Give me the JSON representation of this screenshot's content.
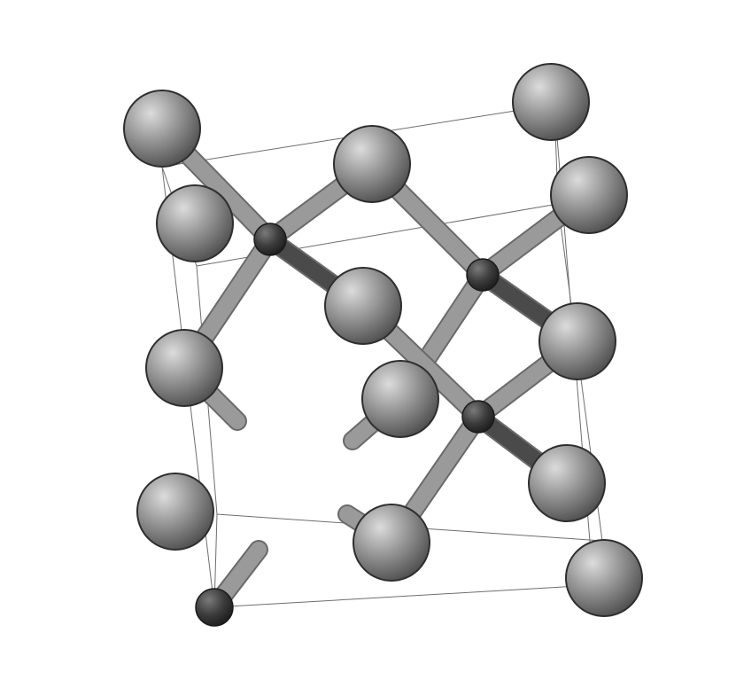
{
  "diagram": {
    "kind": "crystal-structure-unit-cell",
    "colors": {
      "background": "#ffffff",
      "large_atom": "#8f8f8f",
      "small_atom": "#3a3a3a",
      "bond": "#9a9a9a",
      "bond_dark": "#4a4a4a",
      "cell_edge": "#6e6e6e"
    }
  }
}
